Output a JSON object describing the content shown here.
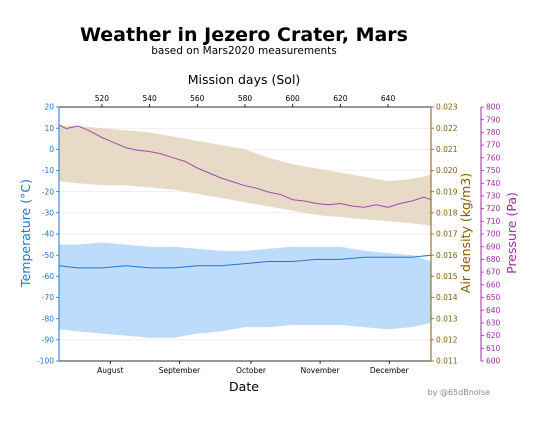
{
  "colors": {
    "temperature": "#1f77d4",
    "temperature_band": "#bddbfb",
    "density": "#8a5a00",
    "density_band": "#dfcfb5",
    "overlap_band": "#a9bccb",
    "pressure": "#9b2fa6",
    "pressure_line": "#a04ba8"
  },
  "chart_data": {
    "type": "line",
    "title": "Weather in Jezero Crater, Mars",
    "subtitle": "based on Mars2020 measurements",
    "credit": "by @65dBnoise",
    "x_bottom": {
      "label": "Date",
      "ticks": [
        "August",
        "September",
        "October",
        "November",
        "December"
      ],
      "tick_sols": [
        523.5,
        552.5,
        582.5,
        611.5,
        640.5
      ]
    },
    "x_top": {
      "label": "Mission days (Sol)",
      "ticks": [
        520,
        540,
        560,
        580,
        600,
        620,
        640
      ],
      "range": [
        502,
        658
      ]
    },
    "y_left": {
      "label": "Temperature (°C)",
      "range": [
        -100,
        20
      ],
      "ticks": [
        -100,
        -90,
        -80,
        -70,
        -60,
        -50,
        -40,
        -30,
        -20,
        -10,
        0,
        10,
        20
      ]
    },
    "y_right1": {
      "label": "Air density (kg/m3)",
      "range": [
        0.011,
        0.023
      ],
      "ticks": [
        0.011,
        0.012,
        0.013,
        0.014,
        0.015,
        0.016,
        0.017,
        0.018,
        0.019,
        0.02,
        0.021,
        0.022,
        0.023
      ],
      "tick_labels": [
        "0.011",
        "0.012",
        "0.013",
        "0.014",
        "0.015",
        "0.016",
        "0.017",
        "0.018",
        "0.019",
        "0.020",
        "0.021",
        "0.022",
        "0.023"
      ]
    },
    "y_right2": {
      "label": "Pressure (Pa)",
      "range": [
        600,
        800
      ],
      "ticks": [
        600,
        610,
        620,
        630,
        640,
        650,
        660,
        670,
        680,
        690,
        700,
        710,
        720,
        730,
        740,
        750,
        760,
        770,
        780,
        790,
        800
      ]
    },
    "grid": true,
    "series": [
      {
        "axis": "temperature",
        "kind": "band",
        "x": [
          502,
          510,
          520,
          530,
          540,
          550,
          560,
          570,
          580,
          590,
          600,
          610,
          620,
          630,
          640,
          650,
          658
        ],
        "low": [
          -85,
          -86,
          -87,
          -88,
          -89,
          -89,
          -87,
          -86,
          -84,
          -84,
          -83,
          -83,
          -83,
          -84,
          -85,
          -84,
          -82
        ],
        "high": [
          -45,
          -45,
          -44,
          -45,
          -46,
          -46,
          -47,
          -48,
          -48,
          -47,
          -46,
          -46,
          -46,
          -48,
          -49,
          -50,
          -53
        ]
      },
      {
        "axis": "temperature",
        "kind": "line",
        "x": [
          502,
          510,
          520,
          530,
          540,
          550,
          560,
          570,
          580,
          590,
          600,
          610,
          620,
          630,
          640,
          650,
          658
        ],
        "values": [
          -55,
          -56,
          -56,
          -55,
          -56,
          -56,
          -55,
          -55,
          -54,
          -53,
          -53,
          -52,
          -52,
          -51,
          -51,
          -51,
          -50
        ]
      },
      {
        "axis": "density",
        "kind": "band",
        "x": [
          502,
          510,
          520,
          530,
          540,
          550,
          560,
          570,
          580,
          590,
          600,
          610,
          620,
          630,
          640,
          650,
          658
        ],
        "low": [
          0.0195,
          0.0194,
          0.0193,
          0.0193,
          0.0192,
          0.0191,
          0.0189,
          0.0187,
          0.0185,
          0.0183,
          0.0181,
          0.0179,
          0.0178,
          0.0177,
          0.0176,
          0.0175,
          0.0174
        ],
        "high": [
          0.0221,
          0.0221,
          0.022,
          0.0219,
          0.0218,
          0.0216,
          0.0214,
          0.0212,
          0.021,
          0.0206,
          0.0203,
          0.0201,
          0.0199,
          0.0197,
          0.0195,
          0.0196,
          0.0198
        ]
      },
      {
        "axis": "pressure",
        "kind": "line",
        "x": [
          502,
          505,
          510,
          515,
          520,
          525,
          530,
          535,
          540,
          545,
          550,
          555,
          560,
          565,
          570,
          575,
          580,
          585,
          590,
          595,
          600,
          605,
          610,
          615,
          620,
          625,
          630,
          635,
          640,
          645,
          650,
          655,
          658
        ],
        "values": [
          786,
          783,
          785,
          781,
          776,
          772,
          768,
          766,
          765,
          763,
          760,
          757,
          752,
          748,
          744,
          741,
          738,
          736,
          733,
          731,
          727,
          726,
          724,
          723,
          724,
          722,
          721,
          723,
          721,
          724,
          726,
          729,
          727
        ]
      }
    ]
  }
}
